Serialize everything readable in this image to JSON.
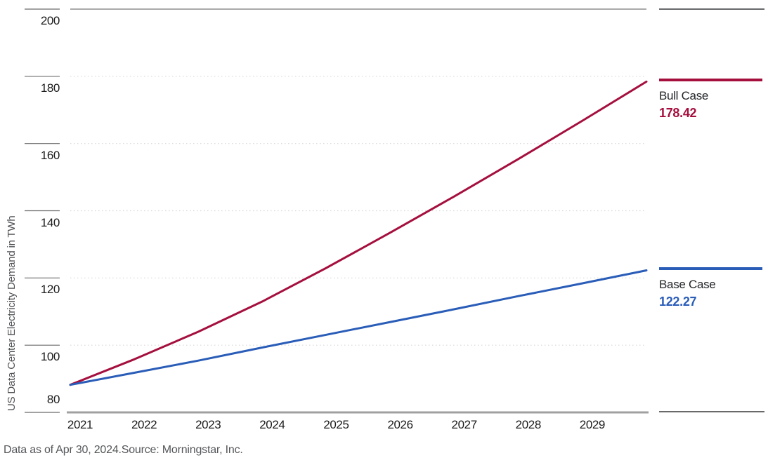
{
  "chart_data": {
    "type": "line",
    "title": "",
    "xlabel": "",
    "ylabel": "US Data Center Electricity Demand in TWh",
    "x": [
      2021,
      2022,
      2023,
      2024,
      2025,
      2026,
      2027,
      2028,
      2029,
      2030
    ],
    "x_tick_labels": [
      "2021",
      "2022",
      "2023",
      "2024",
      "2025",
      "2026",
      "2027",
      "2028",
      "2029"
    ],
    "xlim": [
      2021,
      2030
    ],
    "ylim": [
      80,
      200
    ],
    "yticks": [
      80,
      100,
      120,
      140,
      160,
      180,
      200
    ],
    "grid": "horizontal dotted gridlines; solid top border at 200 and solid bottom axis at 80",
    "legend_position": "right",
    "series": [
      {
        "name": "Bull Case",
        "color": "#a50f3e",
        "end_label": "178.42",
        "values": [
          88.2,
          95.8,
          104.0,
          113.0,
          123.0,
          133.5,
          144.3,
          155.4,
          166.8,
          178.42
        ]
      },
      {
        "name": "Base Case",
        "color": "#2a5db8",
        "end_label": "122.27",
        "values": [
          88.2,
          91.8,
          95.4,
          99.3,
          103.1,
          106.9,
          110.7,
          114.6,
          118.4,
          122.27
        ]
      }
    ]
  },
  "footer": {
    "text": "Data as of Apr 30, 2024.Source: Morningstar, Inc."
  }
}
